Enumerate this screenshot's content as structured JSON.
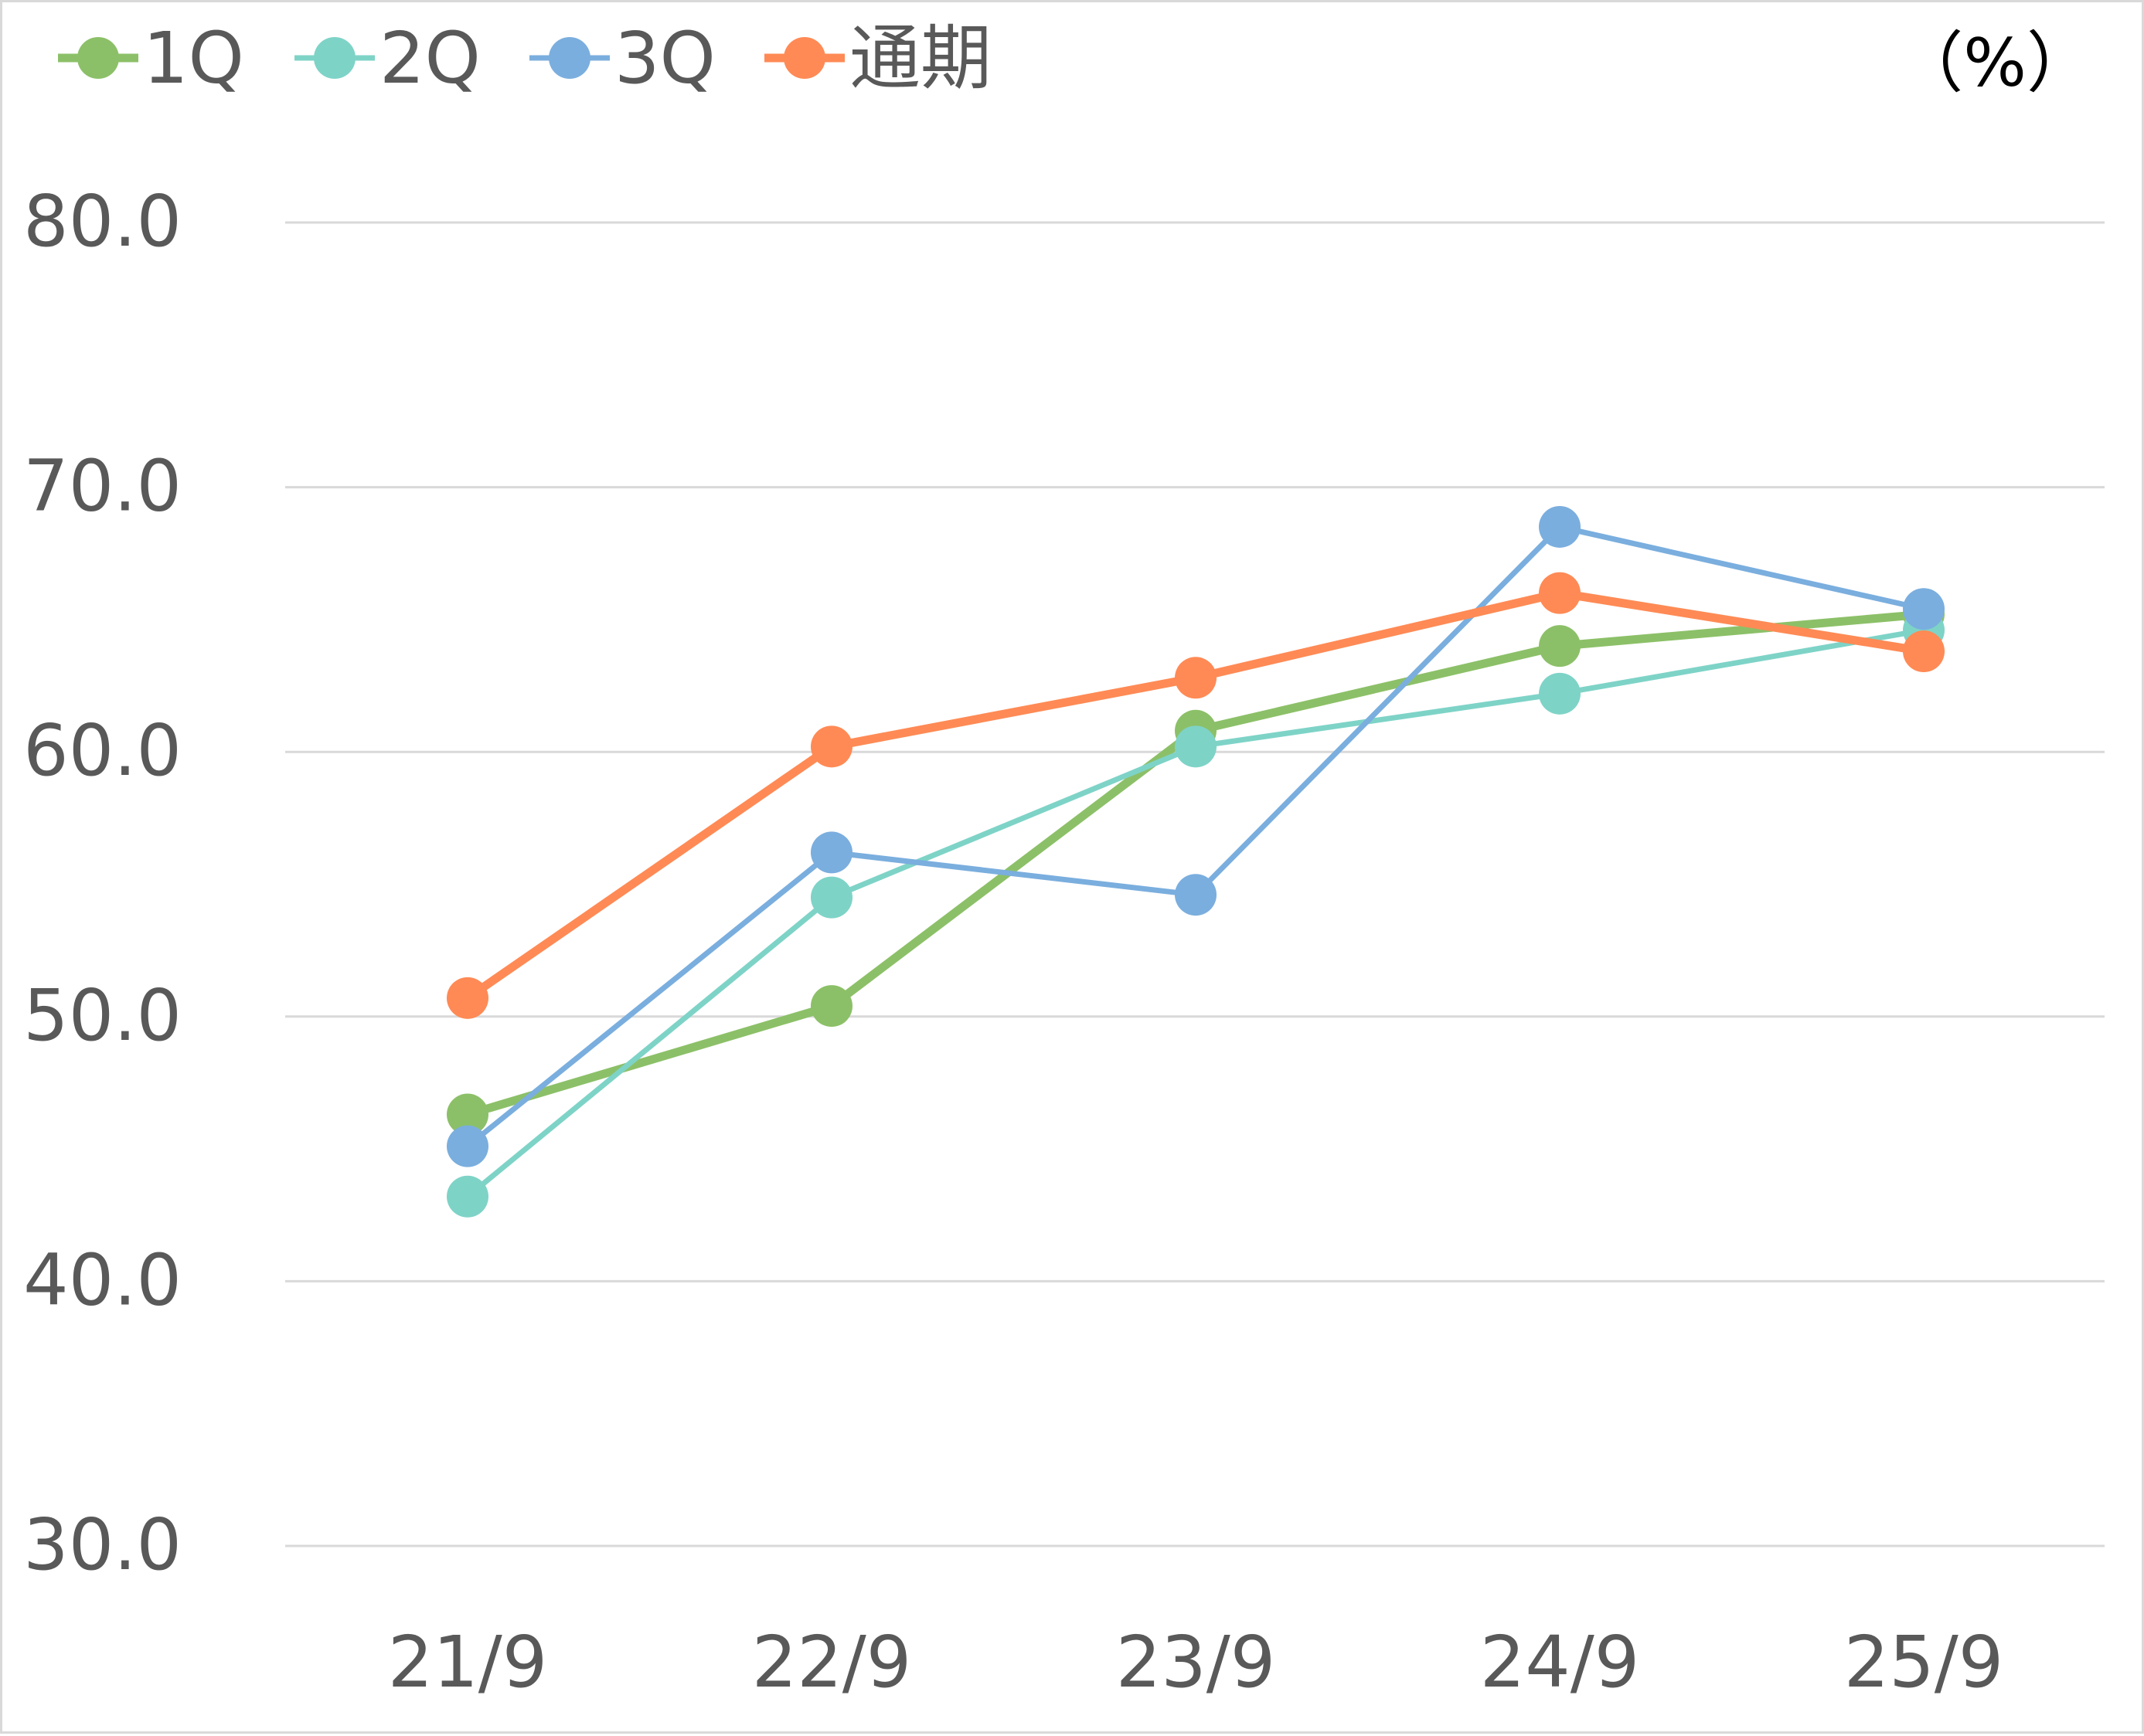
{
  "chart_data": {
    "type": "line",
    "title": "",
    "xlabel": "",
    "ylabel": "",
    "unit_label": "（%）",
    "x": [
      "21/9",
      "22/9",
      "23/9",
      "24/9",
      "25/9"
    ],
    "ylim": [
      30.0,
      80.0
    ],
    "yticks": [
      "80.0",
      "70.0",
      "60.0",
      "50.0",
      "40.0",
      "30.0"
    ],
    "ytick_values": [
      80,
      70,
      60,
      50,
      40,
      30
    ],
    "grid": true,
    "legend_position": "top-left",
    "series": [
      {
        "name": "1Q",
        "color": "#8cc068",
        "values": [
          46.3,
          50.4,
          60.8,
          64.0,
          65.2
        ]
      },
      {
        "name": "2Q",
        "color": "#7ed3c7",
        "values": [
          43.2,
          54.5,
          60.2,
          62.2,
          64.6
        ]
      },
      {
        "name": "3Q",
        "color": "#7aaede",
        "values": [
          45.1,
          56.2,
          54.6,
          68.5,
          65.4
        ]
      },
      {
        "name": "通期",
        "color": "#ff8a55",
        "values": [
          50.7,
          60.2,
          62.8,
          66.0,
          63.8
        ]
      }
    ]
  }
}
